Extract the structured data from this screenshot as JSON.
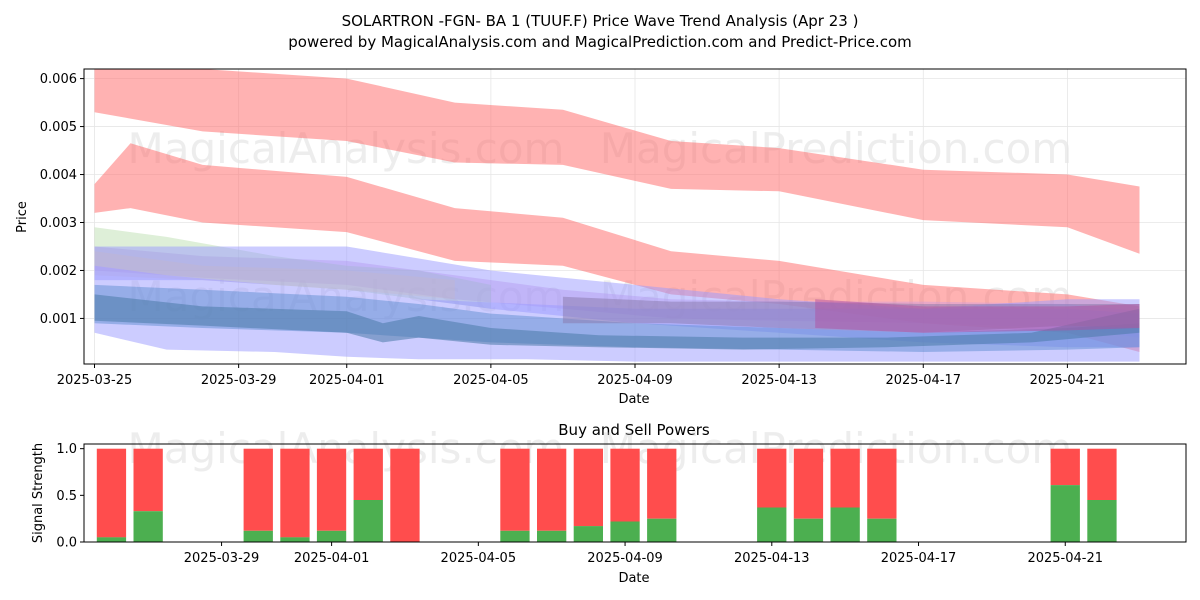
{
  "chart_data": [
    {
      "type": "area",
      "title": "SOLARTRON -FGN-  BA 1 (TUUF.F) Price Wave Trend Analysis (Apr 23 )",
      "subtitle": "powered by MagicalAnalysis.com and MagicalPrediction.com and Predict-Price.com",
      "xlabel": "Date",
      "ylabel": "Price",
      "xlim": [
        "2025-03-24T17:00",
        "2025-04-24T07:00"
      ],
      "ylim": [
        5e-05,
        0.0062
      ],
      "x_ticks": [
        "2025-03-25",
        "2025-03-29",
        "2025-04-01",
        "2025-04-05",
        "2025-04-09",
        "2025-04-13",
        "2025-04-17",
        "2025-04-21"
      ],
      "y_ticks": [
        0.001,
        0.002,
        0.003,
        0.004,
        0.005,
        0.006
      ],
      "y_tick_labels": [
        "0.001",
        "0.002",
        "0.003",
        "0.004",
        "0.005",
        "0.006"
      ],
      "grid": true,
      "watermarks": [
        "MagicalAnalysis.com",
        "MagicalPrediction.com"
      ],
      "series": [
        {
          "color": "#ff6666",
          "opacity": 0.5,
          "x": [
            "2025-03-25",
            "2025-03-28",
            "2025-04-01",
            "2025-04-04",
            "2025-04-07",
            "2025-04-10",
            "2025-04-13",
            "2025-04-17",
            "2025-04-21",
            "2025-04-23"
          ],
          "upper": [
            0.0062,
            0.0062,
            0.006,
            0.0055,
            0.00535,
            0.0047,
            0.00455,
            0.0041,
            0.004,
            0.00375
          ],
          "lower": [
            0.0053,
            0.0049,
            0.0047,
            0.00425,
            0.0042,
            0.0037,
            0.00365,
            0.00305,
            0.0029,
            0.00235
          ]
        },
        {
          "color": "#ff6666",
          "opacity": 0.5,
          "x": [
            "2025-03-25",
            "2025-03-26",
            "2025-03-28",
            "2025-04-01",
            "2025-04-04",
            "2025-04-07",
            "2025-04-10",
            "2025-04-13",
            "2025-04-17",
            "2025-04-21",
            "2025-04-23"
          ],
          "upper": [
            0.0038,
            0.00465,
            0.0042,
            0.00395,
            0.0033,
            0.0031,
            0.0024,
            0.0022,
            0.0017,
            0.0015,
            0.00125
          ],
          "lower": [
            0.0032,
            0.0033,
            0.003,
            0.0028,
            0.0022,
            0.0021,
            0.0015,
            0.0013,
            0.0009,
            0.0007,
            0.0003
          ]
        },
        {
          "color": "#cc99dd",
          "opacity": 0.45,
          "x": [
            "2025-03-25",
            "2025-03-28",
            "2025-04-01",
            "2025-04-04",
            "2025-04-07",
            "2025-04-10",
            "2025-04-13",
            "2025-04-17",
            "2025-04-21",
            "2025-04-23"
          ],
          "upper": [
            0.0025,
            0.0023,
            0.0022,
            0.0019,
            0.0016,
            0.0014,
            0.00135,
            0.00135,
            0.0013,
            0.00115
          ],
          "lower": [
            0.002,
            0.00185,
            0.0017,
            0.0014,
            0.0012,
            0.001,
            0.00095,
            0.0009,
            0.0008,
            0.0006
          ]
        },
        {
          "color": "#a0d090",
          "opacity": 0.35,
          "x": [
            "2025-03-25",
            "2025-03-27",
            "2025-03-30",
            "2025-04-01",
            "2025-04-03",
            "2025-04-05"
          ],
          "upper": [
            0.0029,
            0.0027,
            0.0023,
            0.0021,
            0.002,
            0.0017
          ],
          "lower": [
            0.0021,
            0.0019,
            0.0017,
            0.0016,
            0.0014,
            0.0012
          ]
        },
        {
          "color": "#f0d090",
          "opacity": 0.35,
          "x": [
            "2025-03-25",
            "2025-03-28",
            "2025-04-01",
            "2025-04-04"
          ],
          "upper": [
            0.0024,
            0.0021,
            0.002,
            0.0018
          ],
          "lower": [
            0.0019,
            0.0018,
            0.0016,
            0.0014
          ]
        },
        {
          "color": "#9999ff",
          "opacity": 0.5,
          "x": [
            "2025-03-25",
            "2025-03-27",
            "2025-03-30",
            "2025-04-01",
            "2025-04-03",
            "2025-04-06",
            "2025-04-09",
            "2025-04-13",
            "2025-04-17",
            "2025-04-21",
            "2025-04-23"
          ],
          "upper": [
            0.0021,
            0.0019,
            0.0017,
            0.0016,
            0.0014,
            0.0013,
            0.0012,
            0.0012,
            0.0012,
            0.0014,
            0.0014
          ],
          "lower": [
            0.0007,
            0.00035,
            0.0003,
            0.0002,
            0.00015,
            0.00015,
            0.0001,
            0.0001,
            0.0001,
            0.0001,
            0.0001
          ]
        },
        {
          "color": "#9999ff",
          "opacity": 0.5,
          "x": [
            "2025-03-25",
            "2025-03-28",
            "2025-04-01",
            "2025-04-05",
            "2025-04-09",
            "2025-04-13",
            "2025-04-17",
            "2025-04-21",
            "2025-04-23"
          ],
          "upper": [
            0.0025,
            0.0025,
            0.0025,
            0.002,
            0.0017,
            0.0014,
            0.0012,
            0.0012,
            0.0011
          ],
          "lower": [
            0.0018,
            0.0018,
            0.0016,
            0.0012,
            0.0009,
            0.0007,
            0.0005,
            0.0004,
            0.0004
          ]
        },
        {
          "color": "#5588cc",
          "opacity": 0.45,
          "x": [
            "2025-03-25",
            "2025-03-28",
            "2025-04-01",
            "2025-04-03",
            "2025-04-05",
            "2025-04-09",
            "2025-04-13",
            "2025-04-17",
            "2025-04-21",
            "2025-04-23"
          ],
          "upper": [
            0.0017,
            0.0016,
            0.00145,
            0.0013,
            0.0011,
            0.0009,
            0.0008,
            0.0007,
            0.0008,
            0.0009
          ],
          "lower": [
            0.0009,
            0.0008,
            0.0007,
            0.0006,
            0.0005,
            0.0004,
            0.00035,
            0.0003,
            0.00035,
            0.0004
          ]
        },
        {
          "color": "#4a7aa8",
          "opacity": 0.55,
          "x": [
            "2025-03-25",
            "2025-03-28",
            "2025-04-01",
            "2025-04-02",
            "2025-04-03",
            "2025-04-05",
            "2025-04-08",
            "2025-04-12",
            "2025-04-16",
            "2025-04-20",
            "2025-04-23"
          ],
          "upper": [
            0.0015,
            0.00125,
            0.00115,
            0.0009,
            0.00105,
            0.0008,
            0.00065,
            0.0006,
            0.0006,
            0.0007,
            0.0012
          ],
          "lower": [
            0.00095,
            0.00085,
            0.0007,
            0.0005,
            0.0006,
            0.00045,
            0.0004,
            0.00035,
            0.0004,
            0.0005,
            0.0007
          ]
        },
        {
          "color": "#8877aa",
          "opacity": 0.5,
          "x": [
            "2025-04-07",
            "2025-04-10",
            "2025-04-13",
            "2025-04-17",
            "2025-04-21",
            "2025-04-23"
          ],
          "upper": [
            0.00145,
            0.00135,
            0.00135,
            0.0013,
            0.0013,
            0.0013
          ],
          "lower": [
            0.0009,
            0.0009,
            0.0008,
            0.0007,
            0.00085,
            0.0008
          ]
        },
        {
          "color": "#b050a0",
          "opacity": 0.5,
          "x": [
            "2025-04-14",
            "2025-04-17",
            "2025-04-21",
            "2025-04-23"
          ],
          "upper": [
            0.0014,
            0.00125,
            0.00125,
            0.0013
          ],
          "lower": [
            0.0008,
            0.0007,
            0.00075,
            0.0008
          ]
        }
      ]
    },
    {
      "type": "bar",
      "title": "Buy and Sell Powers",
      "xlabel": "Date",
      "ylabel": "Signal Strength",
      "xlim": [
        "2025-03-25T06:00",
        "2025-04-24T07:00"
      ],
      "ylim": [
        0,
        1.05
      ],
      "x_ticks": [
        "2025-03-29",
        "2025-04-01",
        "2025-04-05",
        "2025-04-09",
        "2025-04-13",
        "2025-04-17",
        "2025-04-21"
      ],
      "y_ticks": [
        0.0,
        0.5,
        1.0
      ],
      "y_tick_labels": [
        "0.0",
        "0.5",
        "1.0"
      ],
      "watermarks": [
        "MagicalAnalysis.com",
        "MagicalPrediction.com"
      ],
      "colors": {
        "buy": "#4caf50",
        "sell": "#ff4d4d"
      },
      "dates": [
        "2025-03-26",
        "2025-03-27",
        "2025-03-30",
        "2025-03-31",
        "2025-04-01",
        "2025-04-02",
        "2025-04-03",
        "2025-04-06",
        "2025-04-07",
        "2025-04-08",
        "2025-04-09",
        "2025-04-10",
        "2025-04-13",
        "2025-04-14",
        "2025-04-15",
        "2025-04-16",
        "2025-04-21",
        "2025-04-22"
      ],
      "buy": [
        0.05,
        0.33,
        0.12,
        0.05,
        0.12,
        0.45,
        0.0,
        0.12,
        0.12,
        0.17,
        0.22,
        0.25,
        0.37,
        0.25,
        0.37,
        0.25,
        0.61,
        0.45
      ],
      "sell": [
        0.95,
        0.67,
        0.88,
        0.95,
        0.88,
        0.55,
        1.0,
        0.88,
        0.88,
        0.83,
        0.78,
        0.75,
        0.63,
        0.75,
        0.63,
        0.75,
        0.39,
        0.55
      ]
    }
  ]
}
